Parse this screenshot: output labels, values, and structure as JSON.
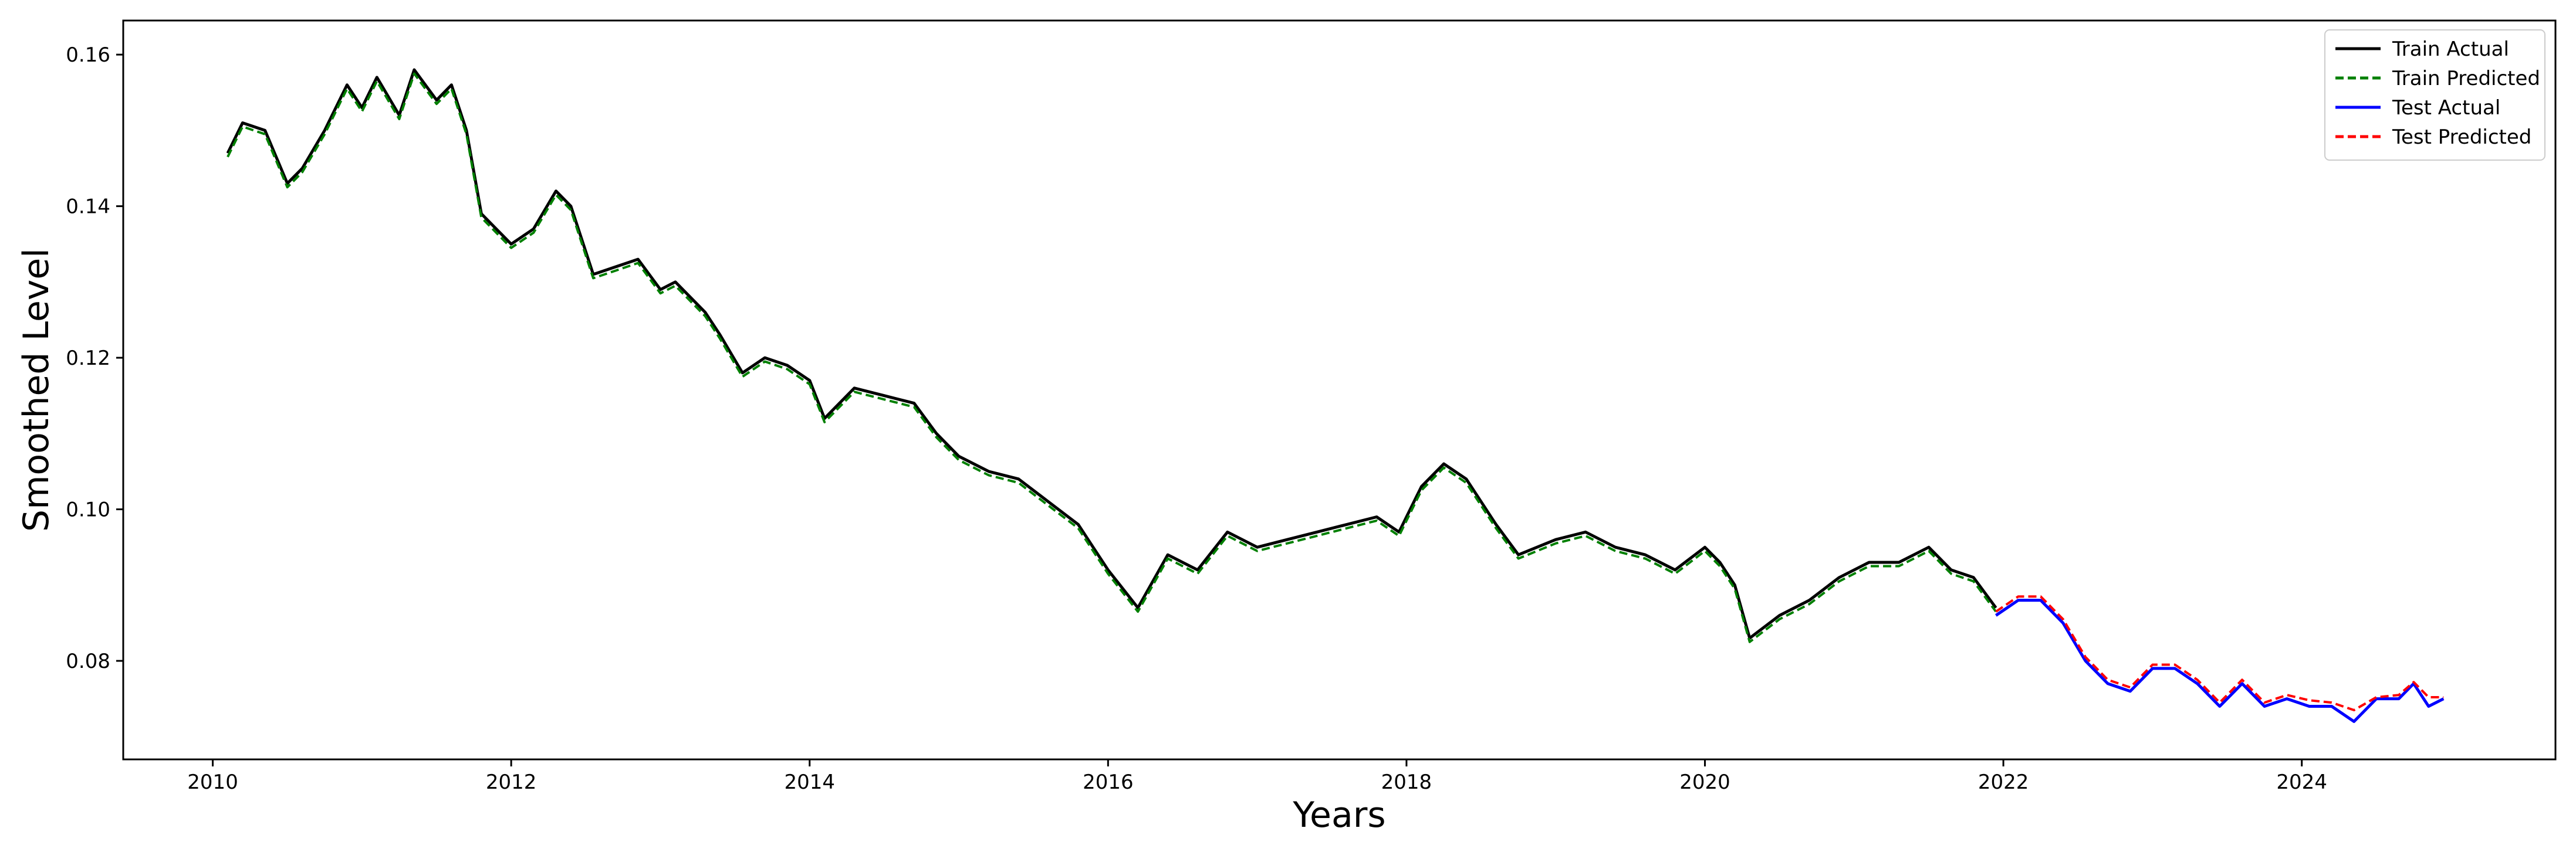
{
  "chart_data": {
    "type": "line",
    "title": "",
    "xlabel": "Years",
    "ylabel": "Smoothed Level",
    "xlim": [
      2009.4,
      2025.7
    ],
    "ylim": [
      0.067,
      0.1645
    ],
    "x_ticks": [
      2010,
      2012,
      2014,
      2016,
      2018,
      2020,
      2022,
      2024
    ],
    "x_tick_labels": [
      "2010",
      "2012",
      "2014",
      "2016",
      "2018",
      "2020",
      "2022",
      "2024"
    ],
    "y_ticks": [
      0.08,
      0.1,
      0.12,
      0.14,
      0.16
    ],
    "y_tick_labels": [
      "0.08",
      "0.10",
      "0.12",
      "0.14",
      "0.16"
    ],
    "grid": false,
    "legend": {
      "position": "top-right",
      "entries": [
        {
          "label": "Train Actual",
          "color": "#000000",
          "style": "solid"
        },
        {
          "label": "Train Predicted",
          "color": "#008000",
          "style": "dashed"
        },
        {
          "label": "Test Actual",
          "color": "#0000ff",
          "style": "solid"
        },
        {
          "label": "Test Predicted",
          "color": "#ff0000",
          "style": "dashed"
        }
      ]
    },
    "series": [
      {
        "name": "Train Actual",
        "color": "#000000",
        "style": "solid",
        "x": [
          2010.1,
          2010.2,
          2010.35,
          2010.5,
          2010.6,
          2010.75,
          2010.9,
          2011.0,
          2011.1,
          2011.25,
          2011.35,
          2011.5,
          2011.6,
          2011.7,
          2011.8,
          2011.9,
          2012.0,
          2012.15,
          2012.3,
          2012.4,
          2012.55,
          2012.7,
          2012.85,
          2013.0,
          2013.1,
          2013.3,
          2013.4,
          2013.55,
          2013.7,
          2013.85,
          2014.0,
          2014.1,
          2014.3,
          2014.5,
          2014.7,
          2014.85,
          2015.0,
          2015.2,
          2015.4,
          2015.6,
          2015.8,
          2015.9,
          2016.0,
          2016.2,
          2016.4,
          2016.6,
          2016.8,
          2017.0,
          2017.2,
          2017.4,
          2017.6,
          2017.8,
          2017.95,
          2018.1,
          2018.25,
          2018.4,
          2018.6,
          2018.75,
          2019.0,
          2019.2,
          2019.4,
          2019.6,
          2019.8,
          2020.0,
          2020.1,
          2020.2,
          2020.3,
          2020.5,
          2020.7,
          2020.9,
          2021.1,
          2021.3,
          2021.5,
          2021.65,
          2021.8,
          2021.95
        ],
        "y": [
          0.147,
          0.151,
          0.15,
          0.143,
          0.145,
          0.15,
          0.156,
          0.153,
          0.157,
          0.152,
          0.158,
          0.154,
          0.156,
          0.15,
          0.139,
          0.137,
          0.135,
          0.137,
          0.142,
          0.14,
          0.131,
          0.132,
          0.133,
          0.129,
          0.13,
          0.126,
          0.123,
          0.118,
          0.12,
          0.119,
          0.117,
          0.112,
          0.116,
          0.115,
          0.114,
          0.11,
          0.107,
          0.105,
          0.104,
          0.101,
          0.098,
          0.095,
          0.092,
          0.087,
          0.094,
          0.092,
          0.097,
          0.095,
          0.096,
          0.097,
          0.098,
          0.099,
          0.097,
          0.103,
          0.106,
          0.104,
          0.098,
          0.094,
          0.096,
          0.097,
          0.095,
          0.094,
          0.092,
          0.095,
          0.093,
          0.09,
          0.083,
          0.086,
          0.088,
          0.091,
          0.093,
          0.093,
          0.095,
          0.092,
          0.091,
          0.087
        ]
      },
      {
        "name": "Train Predicted",
        "color": "#008000",
        "style": "dashed",
        "x": [
          2010.1,
          2010.2,
          2010.35,
          2010.5,
          2010.6,
          2010.75,
          2010.9,
          2011.0,
          2011.1,
          2011.25,
          2011.35,
          2011.5,
          2011.6,
          2011.7,
          2011.8,
          2011.9,
          2012.0,
          2012.15,
          2012.3,
          2012.4,
          2012.55,
          2012.7,
          2012.85,
          2013.0,
          2013.1,
          2013.3,
          2013.4,
          2013.55,
          2013.7,
          2013.85,
          2014.0,
          2014.1,
          2014.3,
          2014.5,
          2014.7,
          2014.85,
          2015.0,
          2015.2,
          2015.4,
          2015.6,
          2015.8,
          2015.9,
          2016.0,
          2016.2,
          2016.4,
          2016.6,
          2016.8,
          2017.0,
          2017.2,
          2017.4,
          2017.6,
          2017.8,
          2017.95,
          2018.1,
          2018.25,
          2018.4,
          2018.6,
          2018.75,
          2019.0,
          2019.2,
          2019.4,
          2019.6,
          2019.8,
          2020.0,
          2020.1,
          2020.2,
          2020.3,
          2020.5,
          2020.7,
          2020.9,
          2021.1,
          2021.3,
          2021.5,
          2021.65,
          2021.8,
          2021.95
        ],
        "y": [
          0.1465,
          0.1505,
          0.1495,
          0.1425,
          0.1445,
          0.1495,
          0.1555,
          0.1525,
          0.1565,
          0.1515,
          0.1575,
          0.1535,
          0.1555,
          0.1495,
          0.1385,
          0.1365,
          0.1345,
          0.1365,
          0.1415,
          0.1395,
          0.1305,
          0.1315,
          0.1325,
          0.1285,
          0.1295,
          0.1255,
          0.1225,
          0.1175,
          0.1195,
          0.1185,
          0.1165,
          0.1115,
          0.1155,
          0.1145,
          0.1135,
          0.1095,
          0.1065,
          0.1045,
          0.1035,
          0.1005,
          0.0975,
          0.0945,
          0.0915,
          0.0865,
          0.0935,
          0.0915,
          0.0965,
          0.0945,
          0.0955,
          0.0965,
          0.0975,
          0.0985,
          0.0965,
          0.1025,
          0.1055,
          0.1035,
          0.0975,
          0.0935,
          0.0955,
          0.0965,
          0.0945,
          0.0935,
          0.0915,
          0.0945,
          0.0925,
          0.0895,
          0.0825,
          0.0855,
          0.0875,
          0.0905,
          0.0925,
          0.0925,
          0.0945,
          0.0915,
          0.0905,
          0.0865
        ]
      },
      {
        "name": "Test Actual",
        "color": "#0000ff",
        "style": "solid",
        "x": [
          2021.95,
          2022.1,
          2022.25,
          2022.4,
          2022.55,
          2022.7,
          2022.85,
          2023.0,
          2023.15,
          2023.3,
          2023.45,
          2023.6,
          2023.75,
          2023.9,
          2024.05,
          2024.2,
          2024.35,
          2024.5,
          2024.65,
          2024.75,
          2024.85,
          2024.95
        ],
        "y": [
          0.086,
          0.088,
          0.088,
          0.085,
          0.08,
          0.077,
          0.076,
          0.079,
          0.079,
          0.077,
          0.074,
          0.077,
          0.074,
          0.075,
          0.074,
          0.074,
          0.072,
          0.075,
          0.075,
          0.077,
          0.074,
          0.075
        ]
      },
      {
        "name": "Test Predicted",
        "color": "#ff0000",
        "style": "dashed",
        "x": [
          2021.95,
          2022.1,
          2022.25,
          2022.4,
          2022.55,
          2022.7,
          2022.85,
          2023.0,
          2023.15,
          2023.3,
          2023.45,
          2023.6,
          2023.75,
          2023.9,
          2024.05,
          2024.2,
          2024.35,
          2024.5,
          2024.65,
          2024.75,
          2024.85,
          2024.95
        ],
        "y": [
          0.0865,
          0.0885,
          0.0885,
          0.0855,
          0.0805,
          0.0775,
          0.0765,
          0.0795,
          0.0795,
          0.0775,
          0.0745,
          0.0775,
          0.0745,
          0.0755,
          0.0748,
          0.0745,
          0.0735,
          0.0752,
          0.0755,
          0.0772,
          0.0752,
          0.0752
        ]
      }
    ]
  }
}
